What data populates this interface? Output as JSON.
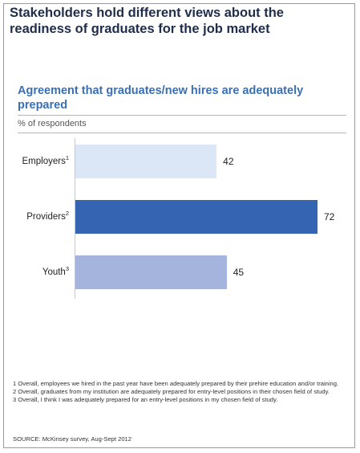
{
  "headline": "Stakeholders hold different views about the readiness of graduates for the job market",
  "chart_data": {
    "type": "bar",
    "orientation": "horizontal",
    "title": "Agreement that graduates/new hires are adequately prepared",
    "ylabel": "% of respondents",
    "categories": [
      {
        "name": "Employers",
        "note": "1"
      },
      {
        "name": "Providers",
        "note": "2"
      },
      {
        "name": "Youth",
        "note": "3"
      }
    ],
    "values": [
      42,
      72,
      45
    ],
    "value_labels": [
      "42",
      "72",
      "45"
    ],
    "xlim": [
      0,
      72
    ],
    "colors": [
      "#dbe6f6",
      "#3564b3",
      "#a4b4dd"
    ],
    "grid": false,
    "legend": "none"
  },
  "footnotes": [
    "1 Overall, employees we hired in the past year have been adequately prepared by their prehire education and/or training.",
    "2 Overall, graduates from my institution are adequately prepared for entry-level positions in their chosen field of study.",
    "3 Overall, I think I was adequately prepared for an entry-level positions in my chosen field of study."
  ],
  "source": "SOURCE: McKinsey survey, Aug-Sept 2012"
}
